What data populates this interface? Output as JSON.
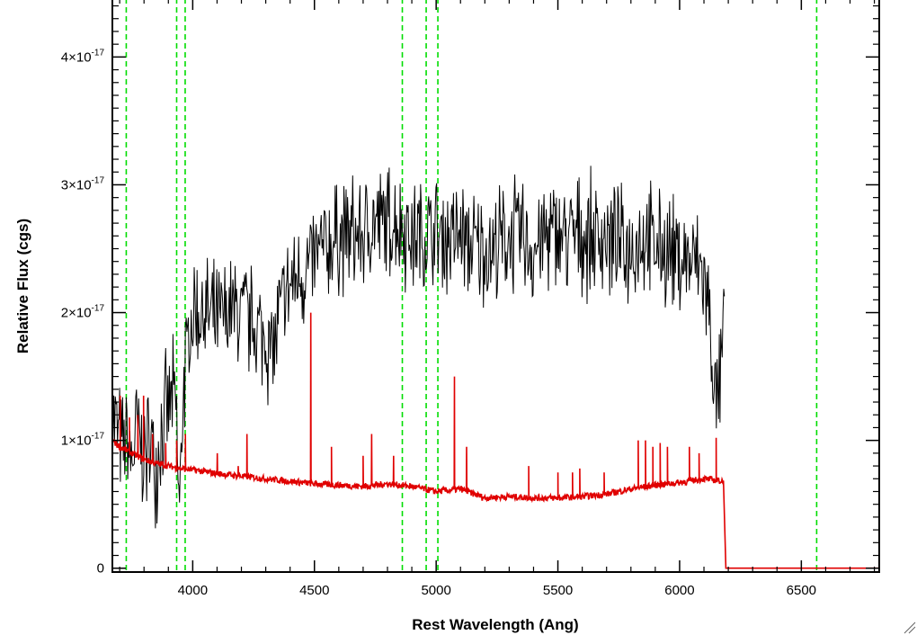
{
  "chart_data": {
    "type": "line",
    "title": "",
    "xlabel": "Rest Wavelength (Ang)",
    "ylabel": "Relative Flux (cgs)",
    "xlim": [
      3670,
      6820
    ],
    "ylim": [
      -3e-19,
      4.46e-17
    ],
    "x_ticks": [
      {
        "value": 4000,
        "label": "4000"
      },
      {
        "value": 4500,
        "label": "4500"
      },
      {
        "value": 5000,
        "label": "5000"
      },
      {
        "value": 5500,
        "label": "5500"
      },
      {
        "value": 6000,
        "label": "6000"
      },
      {
        "value": 6500,
        "label": "6500"
      }
    ],
    "y_ticks": [
      {
        "value": 0,
        "mantissa": "0",
        "exponent": ""
      },
      {
        "value": 1e-17,
        "mantissa": "1×10",
        "exponent": "-17"
      },
      {
        "value": 2e-17,
        "mantissa": "2×10",
        "exponent": "-17"
      },
      {
        "value": 3e-17,
        "mantissa": "3×10",
        "exponent": "-17"
      },
      {
        "value": 4e-17,
        "mantissa": "4×10",
        "exponent": "-17"
      }
    ],
    "reference_lines_x": [
      3727,
      3934,
      3969,
      4861,
      4959,
      5007,
      6563
    ],
    "colors": {
      "observed": "#000000",
      "model": "#e00000",
      "reference": "#00dd00"
    },
    "series": [
      {
        "key": "observed",
        "x": [
          3670,
          3690,
          3710,
          3730,
          3750,
          3770,
          3790,
          3810,
          3830,
          3850,
          3870,
          3890,
          3910,
          3930,
          3945,
          3960,
          3980,
          4000,
          4020,
          4050,
          4100,
          4150,
          4200,
          4250,
          4300,
          4330,
          4360,
          4400,
          4450,
          4500,
          4550,
          4600,
          4650,
          4700,
          4750,
          4800,
          4850,
          4900,
          4950,
          5000,
          5050,
          5100,
          5150,
          5200,
          5250,
          5300,
          5350,
          5400,
          5450,
          5500,
          5550,
          5600,
          5650,
          5700,
          5750,
          5800,
          5850,
          5900,
          5950,
          6000,
          6050,
          6100,
          6130,
          6150,
          6170,
          6185
        ],
        "y": [
          1.2e-17,
          1.1e-17,
          9e-18,
          1e-17,
          8e-18,
          1.1e-17,
          9e-18,
          9e-18,
          1e-17,
          8e-18,
          1.1e-17,
          1.2e-17,
          1.3e-17,
          1.3e-17,
          4e-18,
          1.4e-17,
          1.7e-17,
          2e-17,
          2e-17,
          2e-17,
          1.9e-17,
          2e-17,
          2e-17,
          1.9e-17,
          1.8e-17,
          1.7e-17,
          2e-17,
          2.2e-17,
          2.3e-17,
          2.4e-17,
          2.5e-17,
          2.6e-17,
          2.6e-17,
          2.6e-17,
          2.7e-17,
          2.7e-17,
          2.7e-17,
          2.6e-17,
          2.6e-17,
          2.6e-17,
          2.6e-17,
          2.6e-17,
          2.5e-17,
          2.5e-17,
          2.5e-17,
          2.6e-17,
          2.6e-17,
          2.5e-17,
          2.6e-17,
          2.6e-17,
          2.6e-17,
          2.6e-17,
          2.6e-17,
          2.6e-17,
          2.5e-17,
          2.5e-17,
          2.6e-17,
          2.5e-17,
          2.5e-17,
          2.4e-17,
          2.4e-17,
          2.3e-17,
          1.8e-17,
          1.2e-17,
          1.5e-17,
          2e-17
        ],
        "noise": 5.5e-18
      },
      {
        "key": "model",
        "x": [
          3670,
          3700,
          3750,
          3800,
          3850,
          3900,
          3950,
          4000,
          4100,
          4200,
          4300,
          4400,
          4500,
          4600,
          4700,
          4800,
          4900,
          5000,
          5100,
          5200,
          5300,
          5400,
          5500,
          5600,
          5700,
          5800,
          5900,
          6000,
          6100,
          6180,
          6190,
          6820
        ],
        "y": [
          1e-17,
          9.5e-18,
          9e-18,
          8.5e-18,
          8.2e-18,
          8e-18,
          7.8e-18,
          7.7e-18,
          7.4e-18,
          7.2e-18,
          7e-18,
          6.8e-18,
          6.6e-18,
          6.5e-18,
          6.4e-18,
          6.6e-18,
          6.4e-18,
          6e-18,
          6.2e-18,
          5.5e-18,
          5.6e-18,
          5.5e-18,
          5.5e-18,
          5.6e-18,
          5.8e-18,
          6.2e-18,
          6.5e-18,
          6.7e-18,
          7e-18,
          6.8e-18,
          0,
          0
        ],
        "emission_lines": [
          {
            "x": 3702,
            "y": 1.35e-17
          },
          {
            "x": 3740,
            "y": 1.18e-17
          },
          {
            "x": 3775,
            "y": 1.2e-17
          },
          {
            "x": 3798,
            "y": 1.35e-17
          },
          {
            "x": 3835,
            "y": 1.05e-17
          },
          {
            "x": 3889,
            "y": 9.8e-18
          },
          {
            "x": 3934,
            "y": 1e-17
          },
          {
            "x": 3970,
            "y": 1.05e-17
          },
          {
            "x": 4101,
            "y": 9e-18
          },
          {
            "x": 4187,
            "y": 8e-18
          },
          {
            "x": 4223,
            "y": 1.05e-17
          },
          {
            "x": 4485,
            "y": 2e-17
          },
          {
            "x": 4570,
            "y": 9.5e-18
          },
          {
            "x": 4700,
            "y": 8.8e-18
          },
          {
            "x": 4735,
            "y": 1.05e-17
          },
          {
            "x": 4825,
            "y": 8.8e-18
          },
          {
            "x": 5075,
            "y": 1.5e-17
          },
          {
            "x": 5125,
            "y": 9.5e-18
          },
          {
            "x": 5380,
            "y": 8e-18
          },
          {
            "x": 5500,
            "y": 7.5e-18
          },
          {
            "x": 5560,
            "y": 7.5e-18
          },
          {
            "x": 5590,
            "y": 7.8e-18
          },
          {
            "x": 5690,
            "y": 7.5e-18
          },
          {
            "x": 5830,
            "y": 1e-17
          },
          {
            "x": 5860,
            "y": 1e-17
          },
          {
            "x": 5890,
            "y": 9.5e-18
          },
          {
            "x": 5920,
            "y": 9.8e-18
          },
          {
            "x": 5950,
            "y": 9.5e-18
          },
          {
            "x": 6040,
            "y": 9.5e-18
          },
          {
            "x": 6080,
            "y": 9e-18
          },
          {
            "x": 6150,
            "y": 1.02e-17
          }
        ]
      }
    ]
  }
}
